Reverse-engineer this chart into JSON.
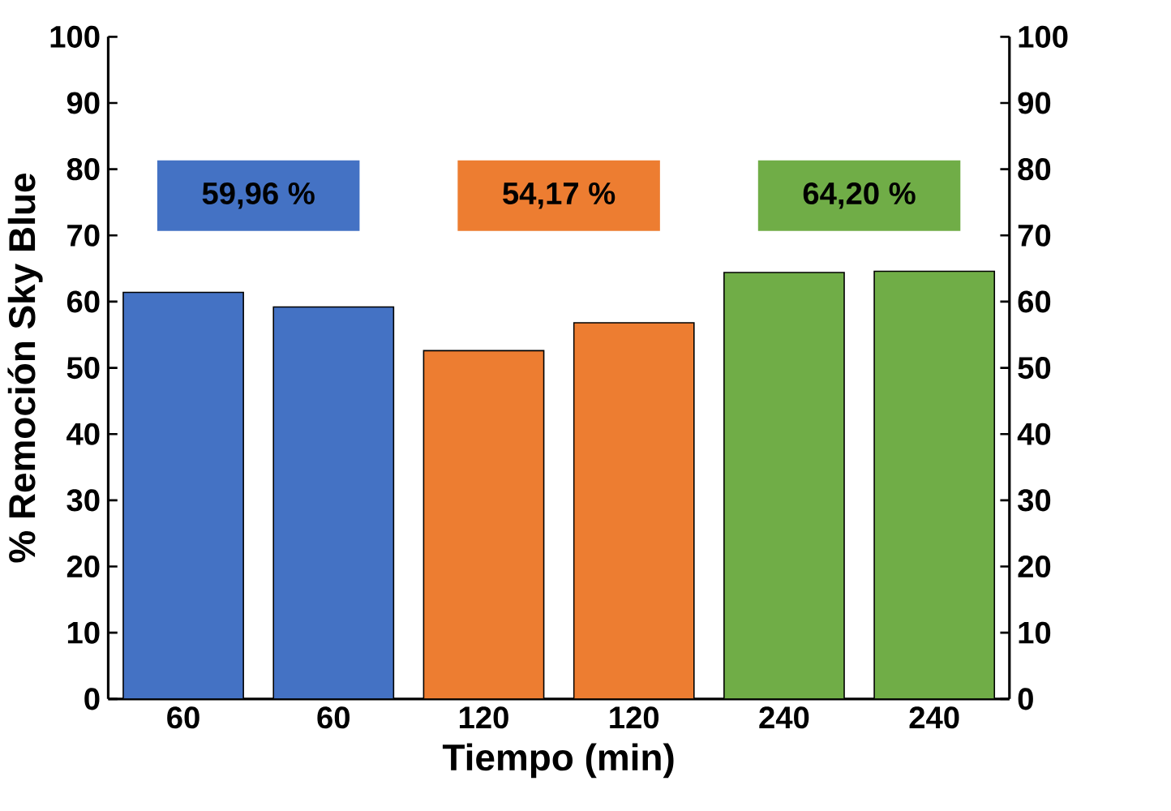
{
  "chart_data": {
    "type": "bar",
    "xlabel": "Tiempo (min)",
    "ylabel": "% Remoción Sky Blue",
    "categories": [
      "60",
      "60",
      "120",
      "120",
      "240",
      "240"
    ],
    "values": [
      61.4,
      59.2,
      52.6,
      56.8,
      64.4,
      64.6
    ],
    "colors": [
      "#4472c4",
      "#4472c4",
      "#ed7d31",
      "#ed7d31",
      "#70ad47",
      "#70ad47"
    ],
    "ylim": [
      0,
      100
    ],
    "yticks": [
      0,
      10,
      20,
      30,
      40,
      50,
      60,
      70,
      80,
      90,
      100
    ],
    "y2lim": [
      0,
      100
    ],
    "y2ticks": [
      0,
      10,
      20,
      30,
      40,
      50,
      60,
      70,
      80,
      90,
      100
    ],
    "annotations": [
      "59,96 %",
      "54,17 %",
      "64,20 %"
    ]
  }
}
